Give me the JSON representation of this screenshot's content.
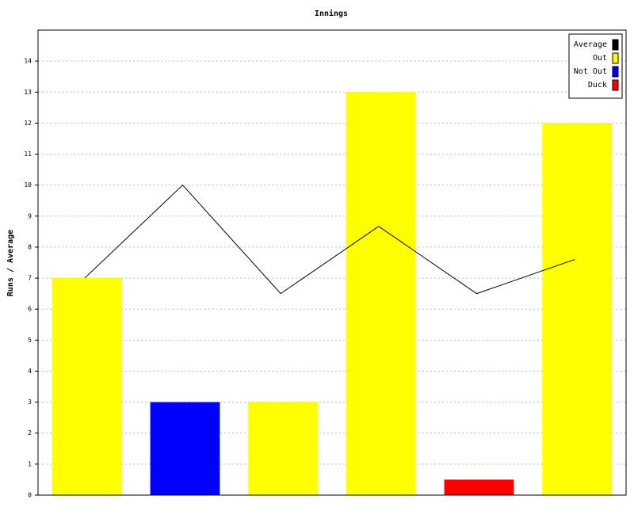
{
  "chart_data": {
    "type": "bar",
    "title": "Innings",
    "y_label": "Runs / Average",
    "categories": [
      null,
      null,
      null,
      null,
      null,
      null
    ],
    "series": [
      {
        "name": "Average",
        "color": "#000000",
        "type": "line",
        "values": [
          7,
          10,
          6.5,
          8.67,
          6.5,
          7.6
        ]
      },
      {
        "name": "Out",
        "color": "#ffff00",
        "type": "bar",
        "values": [
          7,
          null,
          3,
          13,
          null,
          12
        ]
      },
      {
        "name": "Not Out",
        "color": "#0000ff",
        "type": "bar",
        "values": [
          null,
          3,
          null,
          null,
          null,
          null
        ]
      },
      {
        "name": "Duck",
        "color": "#ff0000",
        "type": "bar",
        "values": [
          null,
          null,
          null,
          null,
          0.5,
          null
        ]
      }
    ],
    "ylim": [
      0,
      15
    ],
    "yticks": [
      0,
      1,
      2,
      3,
      4,
      5,
      6,
      7,
      8,
      9,
      10,
      11,
      12,
      13,
      14
    ],
    "grid": true,
    "legend": "top-right"
  }
}
